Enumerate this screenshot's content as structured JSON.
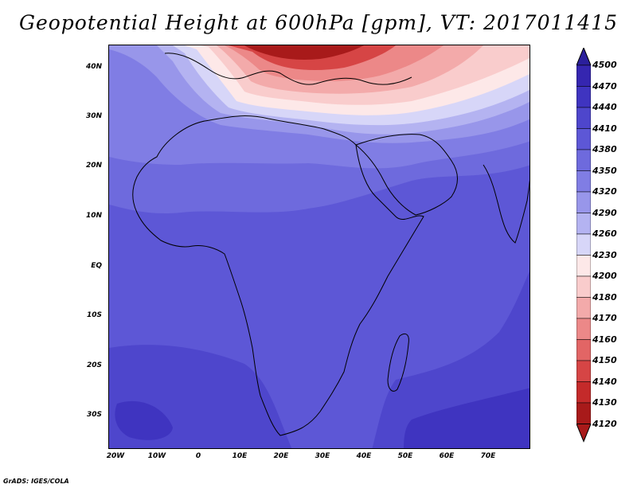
{
  "title": "Geopotential Height at 600hPa [gpm], VT: 2017011415",
  "footer": "GrADS: IGES/COLA",
  "lat_labels": [
    "40N",
    "30N",
    "20N",
    "10N",
    "EQ",
    "10S",
    "20S",
    "30S"
  ],
  "lon_labels": [
    "20W",
    "10W",
    "0",
    "10E",
    "20E",
    "30E",
    "40E",
    "50E",
    "60E",
    "70E"
  ],
  "colorbar": {
    "levels": [
      "4500",
      "4470",
      "4440",
      "4410",
      "4380",
      "4350",
      "4320",
      "4290",
      "4260",
      "4230",
      "4200",
      "4180",
      "4170",
      "4160",
      "4150",
      "4140",
      "4130",
      "4120"
    ],
    "colors": [
      "#2b1f9c",
      "#3526b0",
      "#3f34c0",
      "#4e46cc",
      "#5d57d6",
      "#6e6add",
      "#807de4",
      "#9896ea",
      "#b4b3f1",
      "#d7d6f8",
      "#fde8e8",
      "#f9cccc",
      "#f3aaaa",
      "#ec8888",
      "#e26565",
      "#d64545",
      "#c42a2a",
      "#a81a1a"
    ]
  },
  "field_colors": {
    "south_deep": "#3f34c0",
    "south": "#4e46cc",
    "tropics": "#5d57d6",
    "north_tropics": "#6e6add",
    "subtropics": "#807de4",
    "mid1": "#9896ea",
    "mid2": "#b4b3f1",
    "mid3": "#d7d6f8",
    "pink1": "#fde8e8",
    "pink2": "#f9cccc",
    "pink3": "#f3aaaa",
    "red1": "#ec8888",
    "red2": "#d64545",
    "red3": "#a81a1a",
    "coast": "#000000"
  }
}
